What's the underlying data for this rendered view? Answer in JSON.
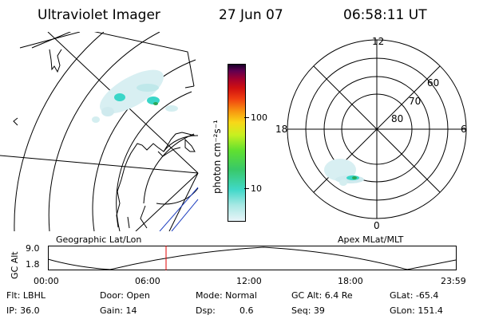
{
  "header": {
    "instrument": "Ultraviolet Imager",
    "date": "27 Jun 07",
    "time": "06:58:11 UT"
  },
  "colors": {
    "aurora": "#3ad6c8",
    "marker": "#e00000",
    "scale_stops": [
      "#e8f4f8",
      "#a8e8e4",
      "#40d8c8",
      "#38c868",
      "#60e030",
      "#c8f020",
      "#f8d818",
      "#f89810",
      "#f04010",
      "#d01010",
      "#a00030",
      "#600050",
      "#180028"
    ]
  },
  "colorbar": {
    "unit_label": "photon cm⁻²s⁻¹",
    "ticks": [
      "100",
      "10"
    ]
  },
  "geo_panel": {
    "label": "Geographic Lat/Lon"
  },
  "polar_panel": {
    "label": "Apex MLat/MLT",
    "mlt_labels": {
      "top": "12",
      "left": "18",
      "right": "6",
      "bottom": "0"
    },
    "lat_labels": [
      "60",
      "70",
      "80"
    ]
  },
  "orbit_plot": {
    "ylabel": "GC Alt",
    "y_ticks": [
      "9.0",
      "1.8"
    ],
    "x_ticks": [
      "00:00",
      "06:00",
      "12:00",
      "18:00",
      "23:59"
    ],
    "current_time_fraction": 0.29
  },
  "status": {
    "filter": "Flt: LBHL",
    "ip": "IP: 36.0",
    "door": "Door: Open",
    "gain": "Gain: 14",
    "mode": "Mode: Normal",
    "dsp_label": "Dsp:",
    "dsp_value": "0.6",
    "gc_alt": "GC Alt: 6.4 Re",
    "seq": "Seq: 39",
    "glat": "GLat: -65.4",
    "glon": "GLon: 151.4"
  }
}
